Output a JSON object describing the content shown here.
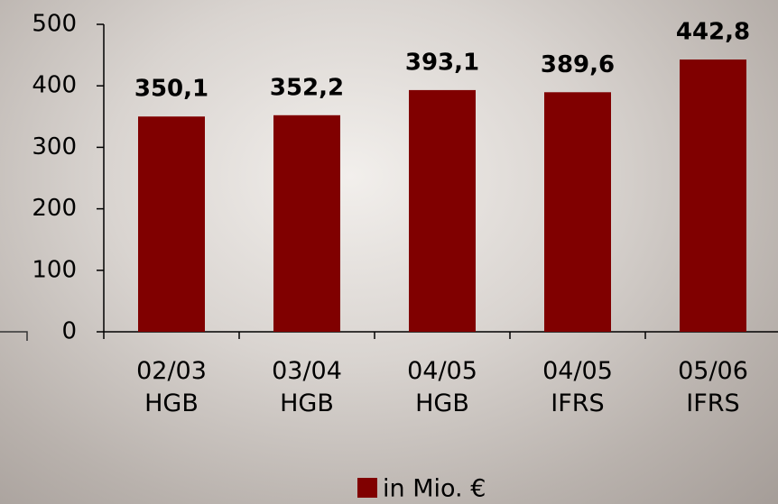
{
  "chart_data": {
    "type": "bar",
    "categories": [
      "02/03\nHGB",
      "03/04\nHGB",
      "04/05\nHGB",
      "04/05\nIFRS",
      "05/06\nIFRS"
    ],
    "series": [
      {
        "name": "in Mio. €",
        "color": "#800000",
        "values": [
          350.1,
          352.2,
          393.1,
          389.6,
          442.8
        ],
        "value_labels": [
          "350,1",
          "352,2",
          "393,1",
          "389,6",
          "442,8"
        ]
      }
    ],
    "ylim": [
      0,
      500
    ],
    "yticks": [
      0,
      100,
      200,
      300,
      400,
      500
    ],
    "grid": false,
    "legend": "bottom"
  }
}
